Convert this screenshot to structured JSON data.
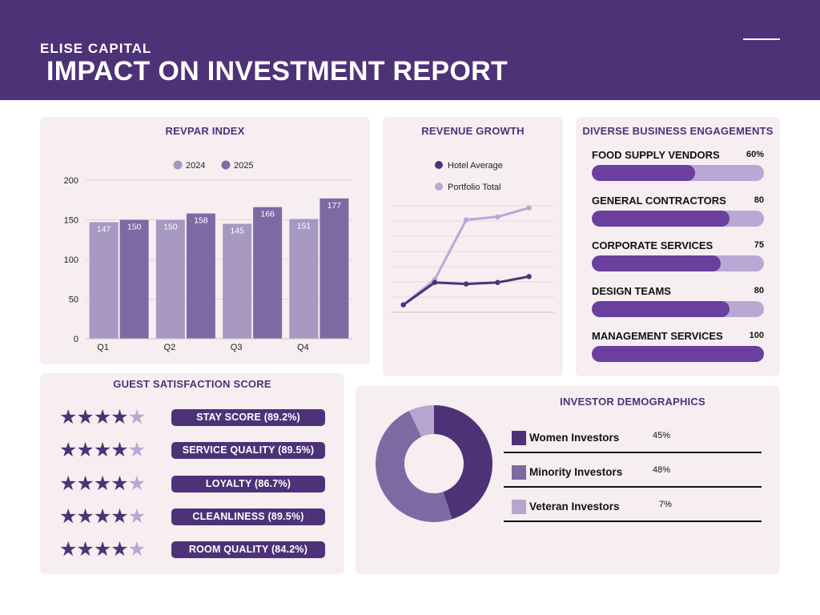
{
  "header": {
    "brand": "ELISE CAPITAL",
    "title": "IMPACT ON INVESTMENT REPORT"
  },
  "colors": {
    "header_bg": "#4e3278",
    "card_bg": "#f6eef0",
    "series_2024": "#a698c0",
    "series_2025": "#7e6aa3",
    "hotel_average": "#4e3278",
    "portfolio_total": "#b9a7d8",
    "bar_fill": "#6a3f9e",
    "bar_track": "#b9a7d4",
    "women": "#4e3278",
    "minority": "#7e6aa3",
    "veteran": "#b4a6cc"
  },
  "revpar": {
    "title": "REVPAR INDEX"
  },
  "revenue": {
    "title": "REVENUE GROWTH"
  },
  "engagements": {
    "title": "DIVERSE BUSINESS ENGAGEMENTS",
    "items": [
      {
        "label": "FOOD SUPPLY VENDORS",
        "value_text": "60%",
        "fraction": 0.6
      },
      {
        "label": "GENERAL CONTRACTORS",
        "value_text": "80",
        "fraction": 0.8
      },
      {
        "label": "CORPORATE SERVICES",
        "value_text": "75",
        "fraction": 0.75
      },
      {
        "label": "DESIGN TEAMS",
        "value_text": "80",
        "fraction": 0.8
      },
      {
        "label": "MANAGEMENT SERVICES",
        "value_text": "100",
        "fraction": 1.0
      }
    ]
  },
  "satisfaction": {
    "title": "GUEST SATISFACTION SCORE",
    "items": [
      {
        "label": "STAY SCORE (89.2%)",
        "stars": 4,
        "max_stars": 5
      },
      {
        "label": "SERVICE QUALITY (89.5%)",
        "stars": 4,
        "max_stars": 5
      },
      {
        "label": "LOYALTY (86.7%)",
        "stars": 4,
        "max_stars": 5
      },
      {
        "label": "CLEANLINESS (89.5%)",
        "stars": 4,
        "max_stars": 5
      },
      {
        "label": "ROOM QUALITY (84.2%)",
        "stars": 4,
        "max_stars": 5
      }
    ]
  },
  "demographics": {
    "title": "INVESTOR DEMOGRAPHICS"
  },
  "chart_data": [
    {
      "type": "bar",
      "title": "REVPAR INDEX",
      "categories": [
        "Q1",
        "Q2",
        "Q3",
        "Q4"
      ],
      "series": [
        {
          "name": "2024",
          "values": [
            147,
            150,
            145,
            151
          ]
        },
        {
          "name": "2025",
          "values": [
            150,
            158,
            166,
            177
          ]
        }
      ],
      "ylim": [
        0,
        200
      ],
      "yticks": [
        0,
        50,
        100,
        150,
        200
      ],
      "grid": true,
      "legend": "top-center",
      "data_labels": true
    },
    {
      "type": "line",
      "title": "REVENUE GROWTH",
      "x": [
        1,
        2,
        3,
        4,
        5
      ],
      "series": [
        {
          "name": "Hotel Average",
          "values": [
            5,
            20,
            19,
            20,
            24
          ]
        },
        {
          "name": "Portfolio Total",
          "values": [
            5,
            22,
            62,
            64,
            70
          ]
        }
      ],
      "ylim": [
        0,
        80
      ],
      "grid": true,
      "axis_labels": false,
      "legend": "top-left"
    },
    {
      "type": "pie",
      "title": "INVESTOR DEMOGRAPHICS",
      "donut": true,
      "slices": [
        {
          "name": "Women Investors",
          "value": 45,
          "label": "45%"
        },
        {
          "name": "Minority Investors",
          "value": 48,
          "label": "48%"
        },
        {
          "name": "Veteran Investors",
          "value": 7,
          "label": "7%"
        }
      ]
    }
  ]
}
